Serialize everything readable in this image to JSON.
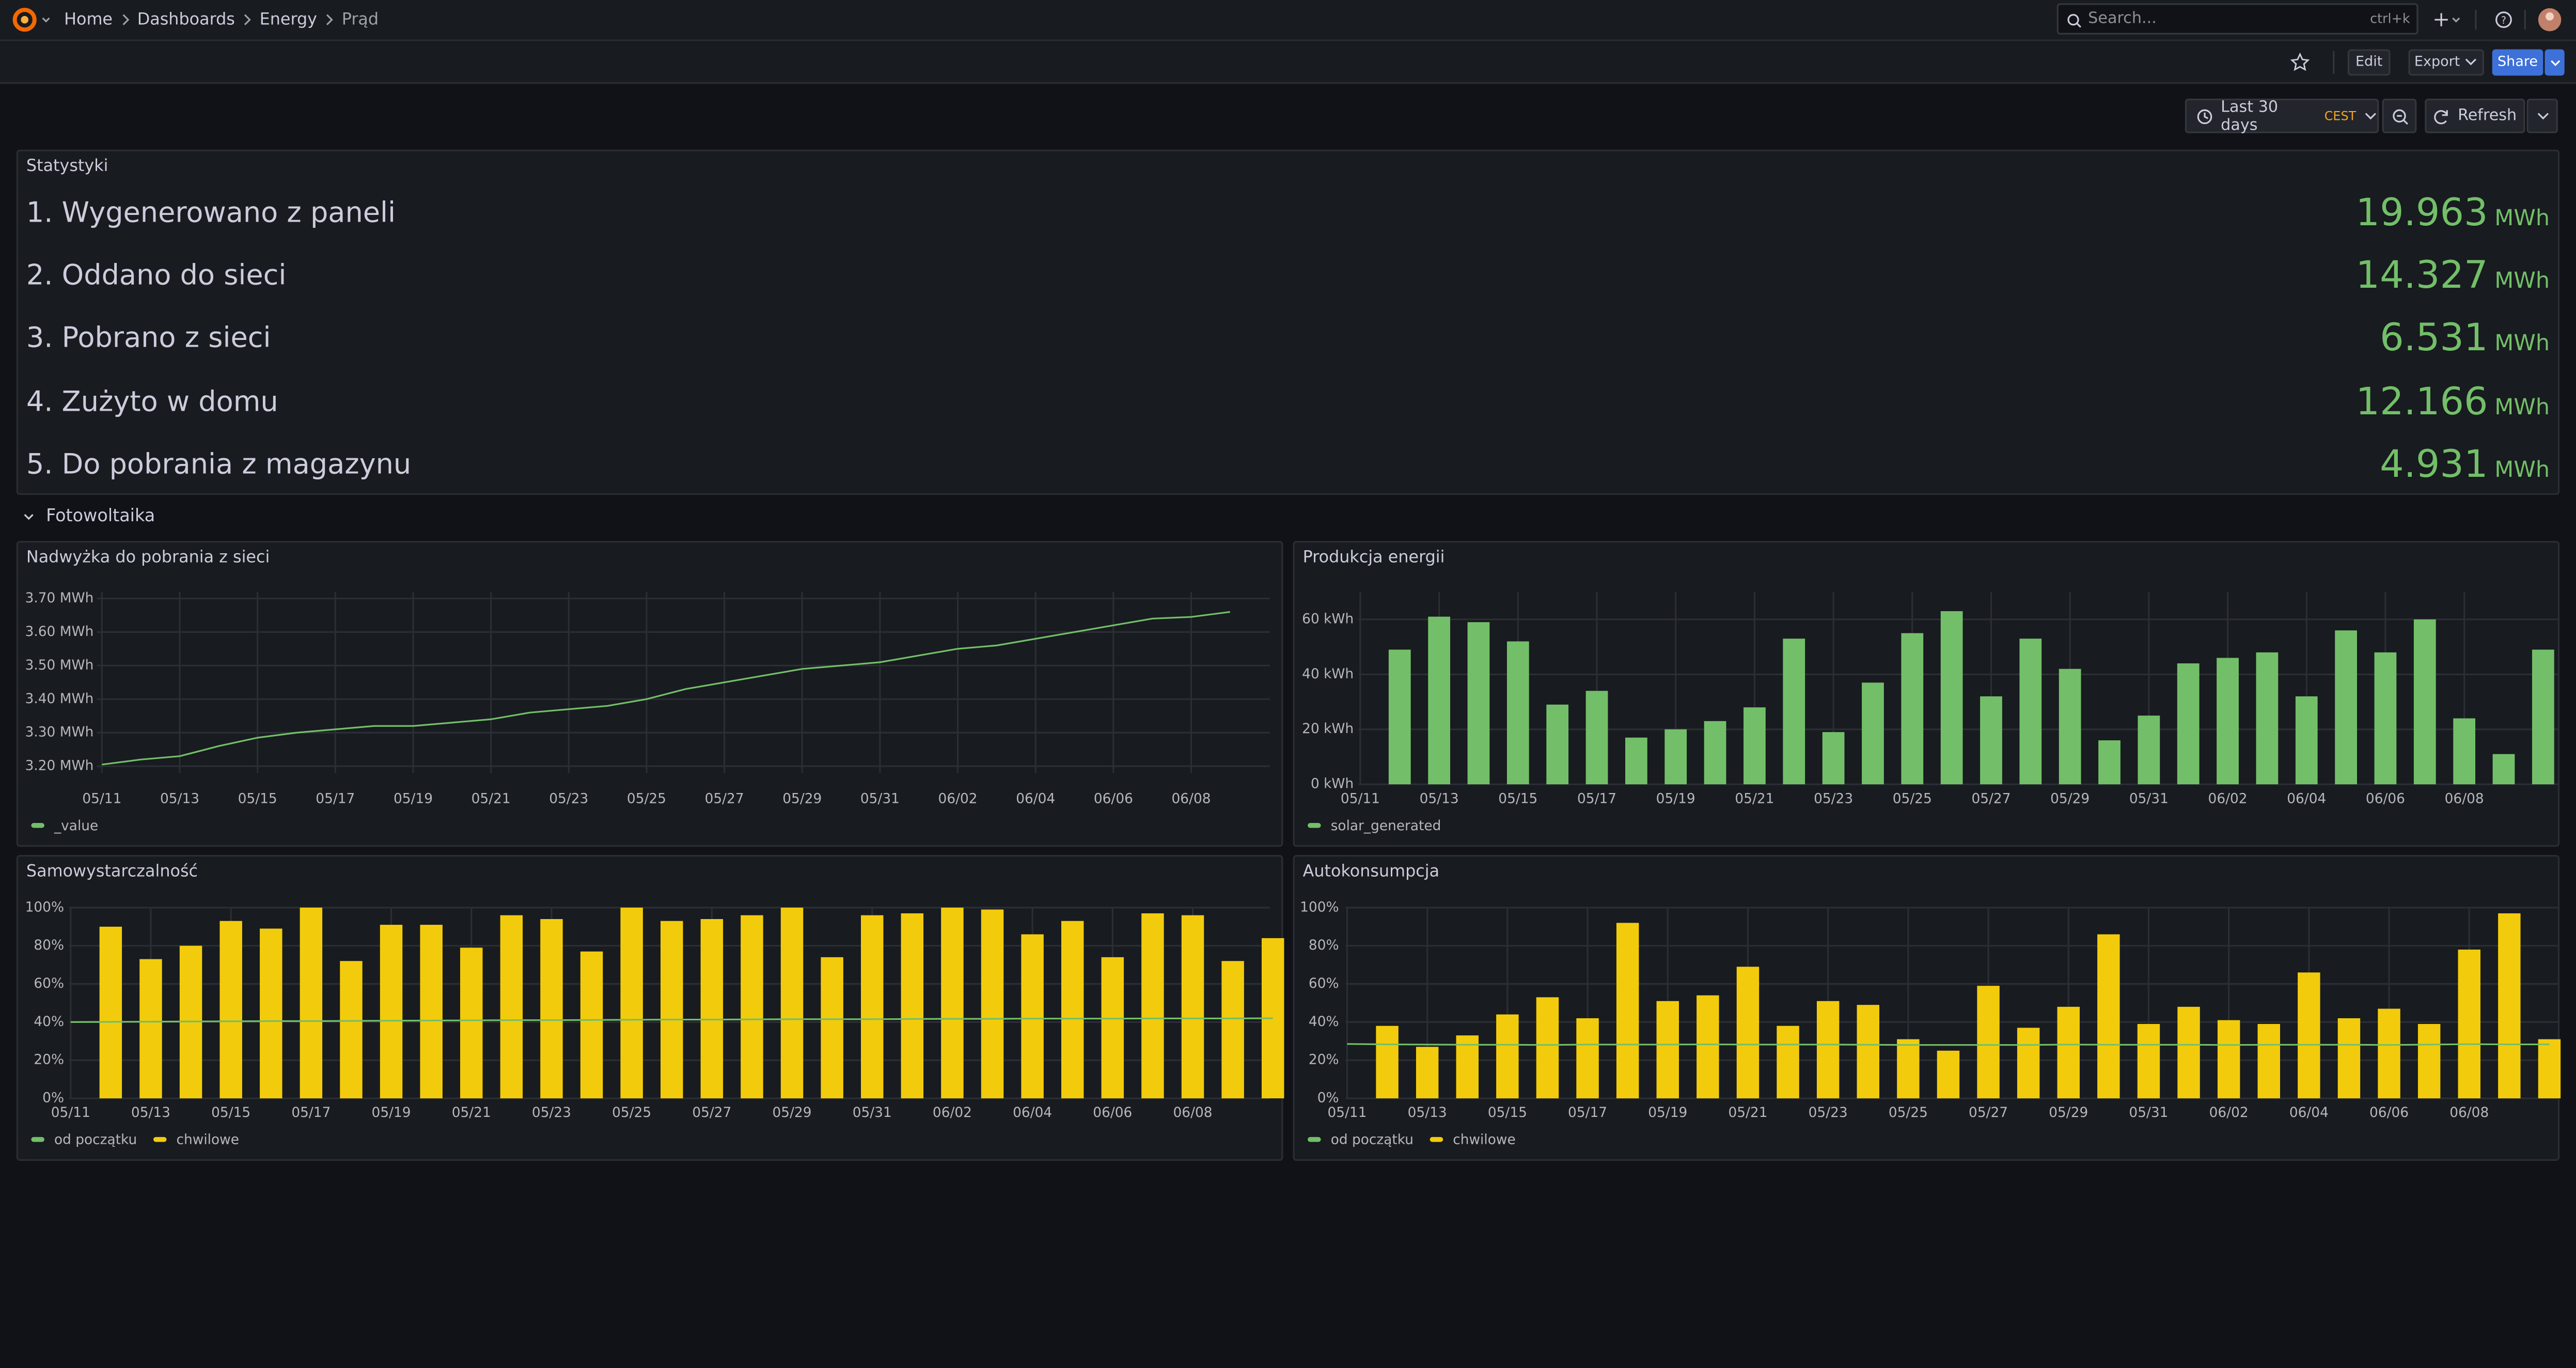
{
  "header": {
    "breadcrumbs": [
      "Home",
      "Dashboards",
      "Energy",
      "Prąd"
    ],
    "search": "Search...",
    "shortcut": "ctrl+k"
  },
  "toolbar": {
    "edit": "Edit",
    "export": "Export",
    "share": "Share"
  },
  "time_picker": {
    "range": "Last 30 days",
    "timezone": "CEST",
    "refresh": "Refresh"
  },
  "stats": {
    "title": "Statystyki",
    "rows": [
      {
        "label": "1. Wygenerowano z paneli",
        "value": 19.963,
        "unit": "MWh"
      },
      {
        "label": "2. Oddano do sieci",
        "value": 14.327,
        "unit": "MWh"
      },
      {
        "label": "3. Pobrano z sieci",
        "value": 6.531,
        "unit": "MWh"
      },
      {
        "label": "4. Zużyto w domu",
        "value": 12.166,
        "unit": "MWh"
      },
      {
        "label": "5. Do pobrania z magazynu",
        "value": 4.931,
        "unit": "MWh"
      }
    ]
  },
  "row_title": "Fotowoltaika",
  "chart_data": [
    {
      "type": "line",
      "title": "Nadwyżka do pobrania z sieci",
      "grid": true,
      "categories": [
        "05/11",
        null,
        "05/13",
        null,
        "05/15",
        null,
        "05/17",
        null,
        "05/19",
        null,
        "05/21",
        null,
        "05/23",
        null,
        "05/25",
        null,
        "05/27",
        null,
        "05/29",
        null,
        "05/31",
        null,
        "06/02",
        null,
        "06/04",
        null,
        "06/06",
        null,
        "06/08",
        null
      ],
      "ylim": [
        3.18,
        3.72
      ],
      "yticks": [
        {
          "value": 3.2,
          "label": "3.20 MWh"
        },
        {
          "value": 3.3,
          "label": "3.30 MWh"
        },
        {
          "value": 3.4,
          "label": "3.40 MWh"
        },
        {
          "value": 3.5,
          "label": "3.50 MWh"
        },
        {
          "value": 3.6,
          "label": "3.60 MWh"
        },
        {
          "value": 3.7,
          "label": "3.70 MWh"
        }
      ],
      "series": [
        {
          "name": "_value",
          "color": "#73bf69",
          "values": [
            3.205,
            3.22,
            3.23,
            3.26,
            3.285,
            3.3,
            3.31,
            3.32,
            3.32,
            3.33,
            3.34,
            3.36,
            3.37,
            3.38,
            3.4,
            3.43,
            3.45,
            3.47,
            3.49,
            3.5,
            3.51,
            3.53,
            3.55,
            3.56,
            3.58,
            3.6,
            3.62,
            3.64,
            3.645,
            3.66
          ]
        }
      ]
    },
    {
      "type": "bar",
      "title": "Produkcja energii",
      "grid": true,
      "categories": [
        "05/11",
        null,
        "05/13",
        null,
        "05/15",
        null,
        "05/17",
        null,
        "05/19",
        null,
        "05/21",
        null,
        "05/23",
        null,
        "05/25",
        null,
        "05/27",
        null,
        "05/29",
        null,
        "05/31",
        null,
        "06/02",
        null,
        "06/04",
        null,
        "06/06",
        null,
        "06/08",
        null,
        null
      ],
      "ylim": [
        0,
        70
      ],
      "yticks": [
        {
          "value": 0,
          "label": "0 kWh"
        },
        {
          "value": 20,
          "label": "20 kWh"
        },
        {
          "value": 40,
          "label": "40 kWh"
        },
        {
          "value": 60,
          "label": "60 kWh"
        }
      ],
      "series": [
        {
          "name": "solar_generated",
          "color": "#73bf69",
          "values": [
            null,
            49,
            61,
            59,
            52,
            29,
            34,
            17,
            20,
            23,
            28,
            53,
            19,
            37,
            55,
            63,
            32,
            53,
            42,
            16,
            25,
            44,
            46,
            48,
            32,
            56,
            48,
            60,
            24,
            11,
            49
          ]
        }
      ]
    },
    {
      "type": "bar",
      "title": "Samowystarczalność",
      "grid": true,
      "categories": [
        "05/11",
        null,
        "05/13",
        null,
        "05/15",
        null,
        "05/17",
        null,
        "05/19",
        null,
        "05/21",
        null,
        "05/23",
        null,
        "05/25",
        null,
        "05/27",
        null,
        "05/29",
        null,
        "05/31",
        null,
        "06/02",
        null,
        "06/04",
        null,
        "06/06",
        null,
        "06/08",
        null,
        null
      ],
      "ylim": [
        0,
        100
      ],
      "yticks": [
        {
          "value": 0,
          "label": "0%"
        },
        {
          "value": 20,
          "label": "20%"
        },
        {
          "value": 40,
          "label": "40%"
        },
        {
          "value": 60,
          "label": "60%"
        },
        {
          "value": 80,
          "label": "80%"
        },
        {
          "value": 100,
          "label": "100%"
        }
      ],
      "series": [
        {
          "name": "od początku",
          "type": "line",
          "color": "#73bf69",
          "values": [
            40.0,
            40.1,
            40.2,
            40.3,
            40.4,
            40.5,
            40.5,
            40.6,
            40.7,
            40.8,
            40.9,
            41.0,
            41.0,
            41.1,
            41.2,
            41.3,
            41.3,
            41.4,
            41.5,
            41.5,
            41.5,
            41.6,
            41.7,
            41.7,
            41.8,
            41.8,
            41.8,
            41.9,
            41.9,
            41.9,
            42.0
          ]
        },
        {
          "name": "chwilowe",
          "type": "bar",
          "color": "#f2cc0c",
          "values": [
            null,
            90,
            73,
            80,
            93,
            89,
            100,
            72,
            91,
            91,
            79,
            96,
            94,
            77,
            100,
            93,
            94,
            96,
            100,
            74,
            96,
            97,
            100,
            99,
            86,
            93,
            74,
            97,
            96,
            72,
            84
          ]
        }
      ]
    },
    {
      "type": "bar",
      "title": "Autokonsumpcja",
      "grid": true,
      "categories": [
        "05/11",
        null,
        "05/13",
        null,
        "05/15",
        null,
        "05/17",
        null,
        "05/19",
        null,
        "05/21",
        null,
        "05/23",
        null,
        "05/25",
        null,
        "05/27",
        null,
        "05/29",
        null,
        "05/31",
        null,
        "06/02",
        null,
        "06/04",
        null,
        "06/06",
        null,
        "06/08",
        null,
        null
      ],
      "ylim": [
        0,
        100
      ],
      "yticks": [
        {
          "value": 0,
          "label": "0%"
        },
        {
          "value": 20,
          "label": "20%"
        },
        {
          "value": 40,
          "label": "40%"
        },
        {
          "value": 60,
          "label": "60%"
        },
        {
          "value": 80,
          "label": "80%"
        },
        {
          "value": 100,
          "label": "100%"
        }
      ],
      "series": [
        {
          "name": "od początku",
          "type": "line",
          "color": "#73bf69",
          "values": [
            28.5,
            28.3,
            28.2,
            28.1,
            28.1,
            28.0,
            28.2,
            28.2,
            28.2,
            28.3,
            28.2,
            28.2,
            28.2,
            28.1,
            28.0,
            28.0,
            28.0,
            28.0,
            28.2,
            28.1,
            28.1,
            28.1,
            28.0,
            28.1,
            28.1,
            28.1,
            28.0,
            28.2,
            28.4,
            28.3,
            28.3
          ]
        },
        {
          "name": "chwilowe",
          "type": "bar",
          "color": "#f2cc0c",
          "values": [
            null,
            38,
            27,
            33,
            44,
            53,
            42,
            92,
            51,
            54,
            69,
            38,
            51,
            49,
            31,
            25,
            59,
            37,
            48,
            86,
            39,
            48,
            41,
            39,
            66,
            42,
            47,
            39,
            78,
            97,
            31
          ]
        }
      ]
    }
  ]
}
